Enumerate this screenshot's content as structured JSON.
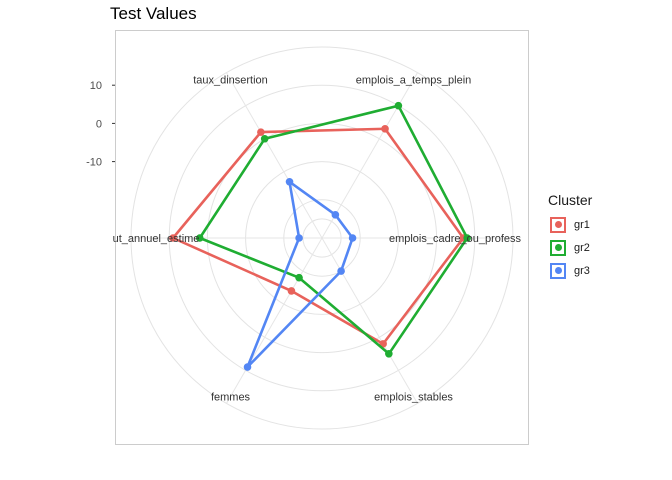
{
  "chart_data": {
    "type": "radar",
    "title": "Test Values",
    "legend_title": "Cluster",
    "legend_position": "right",
    "grid": true,
    "rlim": [
      -30,
      20
    ],
    "r_ticks": [
      10,
      0,
      -10
    ],
    "axes": [
      {
        "label": "emplois_cadre_ou_profess",
        "display": "emplois_cadre_ou_profess"
      },
      {
        "label": "emplois_a_temps_plein",
        "display": "emplois_a_temps_plein"
      },
      {
        "label": "taux_dinsertion",
        "display": "taux_dinsertion"
      },
      {
        "label": "salaire_net_mensuel_annuel_estime",
        "display": "ut_annuel_estime"
      },
      {
        "label": "femmes",
        "display": "femmes"
      },
      {
        "label": "emplois_stables",
        "display": "emplois_stables"
      }
    ],
    "series": [
      {
        "name": "gr1",
        "color": "#E8625B",
        "values": [
          7,
          3,
          2,
          9,
          -14,
          2
        ]
      },
      {
        "name": "gr2",
        "color": "#1FAD32",
        "values": [
          8,
          10,
          0,
          2,
          -18,
          5
        ]
      },
      {
        "name": "gr3",
        "color": "#5386F4",
        "values": [
          -22,
          -23,
          -13,
          -24,
          9,
          -20
        ]
      }
    ]
  }
}
